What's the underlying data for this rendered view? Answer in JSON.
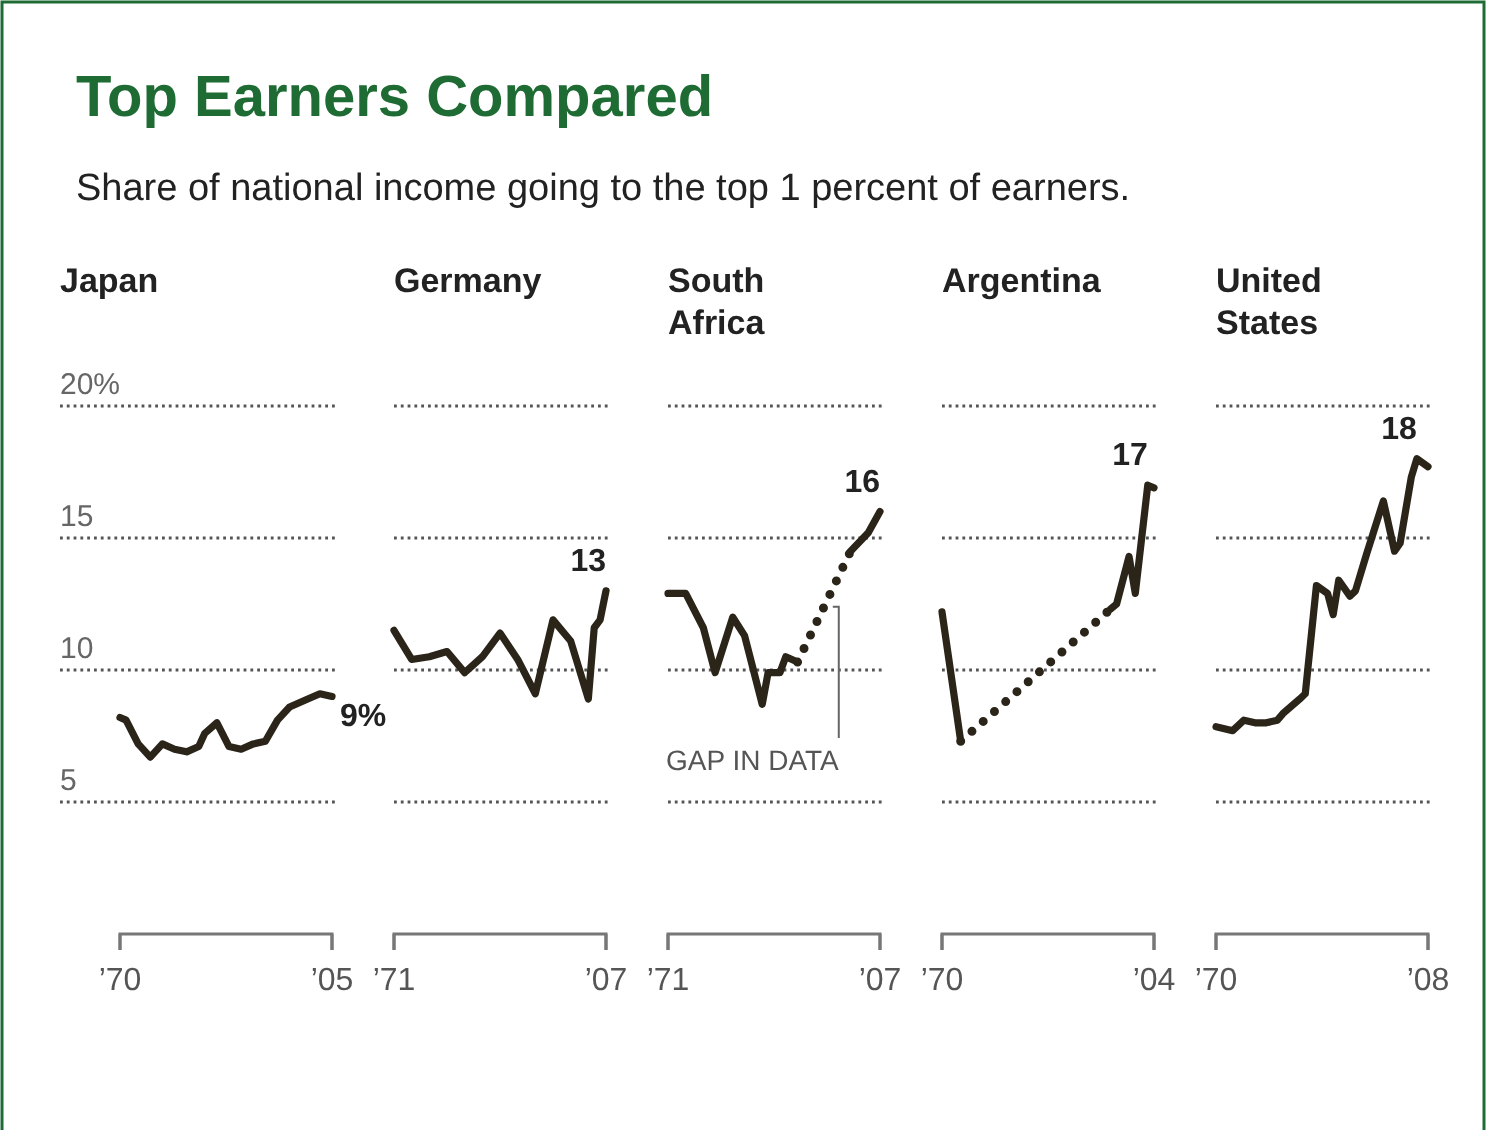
{
  "chart_data": [
    {
      "type": "other",
      "title": "Top Earners Compared",
      "subtitle": "Share of national income going to the top 1 percent of earners."
    },
    {
      "type": "line",
      "title": "Japan",
      "xlim": [
        1970,
        2005
      ],
      "xticks": [
        {
          "value": 1970,
          "label": "’70"
        },
        {
          "value": 2005,
          "label": "’05"
        }
      ],
      "ylim": [
        0,
        20
      ],
      "yticks": [
        {
          "value": 5,
          "label": "5"
        },
        {
          "value": 10,
          "label": "10"
        },
        {
          "value": 15,
          "label": "15"
        },
        {
          "value": 20,
          "label": "20%"
        }
      ],
      "grid": "y",
      "line_style": "solid",
      "series": [
        {
          "color": "#2b2419",
          "x": [
            1970,
            1971,
            1973,
            1975,
            1977,
            1979,
            1981,
            1983,
            1984,
            1986,
            1988,
            1990,
            1992,
            1994,
            1996,
            1998,
            2001,
            2003,
            2005
          ],
          "values": [
            8.2,
            8.1,
            7.2,
            6.7,
            7.2,
            7.0,
            6.9,
            7.1,
            7.6,
            8.0,
            7.1,
            7.0,
            7.2,
            7.3,
            8.1,
            8.6,
            8.9,
            9.1,
            9
          ]
        }
      ],
      "annotations": [
        {
          "text": "9%",
          "x": 2005,
          "y": 9
        }
      ]
    },
    {
      "type": "line",
      "title": "Germany",
      "xlim": [
        1971,
        2007
      ],
      "xticks": [
        {
          "value": 1971,
          "label": "’71"
        },
        {
          "value": 2007,
          "label": "’07"
        }
      ],
      "ylim": [
        0,
        20
      ],
      "yticks": [
        5,
        10,
        15,
        20
      ],
      "grid": "y",
      "tick_labels": "x",
      "line_style": "solid",
      "series": [
        {
          "color": "#2b2419",
          "x": [
            1971,
            1974,
            1977,
            1980,
            1983,
            1986,
            1989,
            1992,
            1995,
            1998,
            2001,
            2004,
            2005,
            2006,
            2007
          ],
          "values": [
            11.5,
            10.4,
            10.5,
            10.7,
            9.9,
            10.5,
            11.4,
            10.4,
            9.1,
            11.9,
            11.1,
            8.9,
            11.6,
            11.9,
            13
          ]
        }
      ],
      "annotations": [
        {
          "text": "13",
          "x": 2007,
          "y": 13
        }
      ]
    },
    {
      "type": "line",
      "title": "South Africa",
      "xlim": [
        1971,
        2007
      ],
      "xticks": [
        {
          "value": 1971,
          "label": "’71"
        },
        {
          "value": 2007,
          "label": "’07"
        }
      ],
      "ylim": [
        0,
        20
      ],
      "yticks": [
        5,
        10,
        15,
        20
      ],
      "grid": "y",
      "tick_labels": "x",
      "line_style": "solid",
      "series": [
        {
          "color": "#2b2419",
          "x": [
            1971,
            1974,
            1977,
            1979,
            1982,
            1984,
            1987,
            1988,
            1990,
            1991,
            1993
          ],
          "values": [
            12.9,
            12.9,
            11.6,
            9.9,
            12.0,
            11.3,
            8.7,
            9.9,
            9.9,
            10.5,
            10.3
          ]
        },
        {
          "color": "#2b2419",
          "line_style": "dotted",
          "x": [
            1993,
            2002
          ],
          "values": [
            10.3,
            14.5
          ]
        },
        {
          "color": "#2b2419",
          "x": [
            2002,
            2005,
            2007
          ],
          "values": [
            14.5,
            15.2,
            16
          ]
        }
      ],
      "annotations": [
        {
          "text": "16",
          "x": 2007,
          "y": 16
        },
        {
          "text": "GAP IN DATA",
          "x": 2000,
          "y": 12.4
        }
      ]
    },
    {
      "type": "line",
      "title": "Argentina",
      "xlim": [
        1970,
        2004
      ],
      "xticks": [
        {
          "value": 1970,
          "label": "’70"
        },
        {
          "value": 2004,
          "label": "’04"
        }
      ],
      "ylim": [
        0,
        20
      ],
      "yticks": [
        5,
        10,
        15,
        20
      ],
      "grid": "y",
      "tick_labels": "x",
      "line_style": "solid",
      "series": [
        {
          "color": "#2b2419",
          "x": [
            1970,
            1973
          ],
          "values": [
            12.2,
            7.3
          ]
        },
        {
          "color": "#2b2419",
          "line_style": "dotted",
          "x": [
            1973,
            1997
          ],
          "values": [
            7.3,
            12.3
          ]
        },
        {
          "color": "#2b2419",
          "x": [
            1997,
            1998,
            2000,
            2001,
            2003,
            2004
          ],
          "values": [
            12.3,
            12.5,
            14.3,
            12.9,
            17,
            16.9
          ]
        }
      ],
      "annotations": [
        {
          "text": "17",
          "x": 2003,
          "y": 17
        }
      ]
    },
    {
      "type": "line",
      "title": "United States",
      "xlim": [
        1970,
        2008
      ],
      "xticks": [
        {
          "value": 1970,
          "label": "’70"
        },
        {
          "value": 2008,
          "label": "’08"
        }
      ],
      "ylim": [
        0,
        20
      ],
      "yticks": [
        5,
        10,
        15,
        20
      ],
      "grid": "y",
      "tick_labels": "x",
      "line_style": "solid",
      "series": [
        {
          "color": "#2b2419",
          "x": [
            1970,
            1973,
            1975,
            1977,
            1979,
            1981,
            1982,
            1985,
            1986,
            1988,
            1990,
            1991,
            1992,
            1994,
            1995,
            1997,
            2000,
            2002,
            2003,
            2005,
            2006,
            2008
          ],
          "values": [
            7.85,
            7.7,
            8.1,
            8.0,
            8.0,
            8.1,
            8.35,
            8.9,
            9.1,
            13.2,
            12.9,
            12.1,
            13.4,
            12.8,
            13.0,
            14.4,
            16.4,
            14.5,
            14.8,
            17.3,
            18,
            17.7
          ]
        }
      ],
      "annotations": [
        {
          "text": "18",
          "x": 2006,
          "y": 18
        }
      ]
    }
  ]
}
